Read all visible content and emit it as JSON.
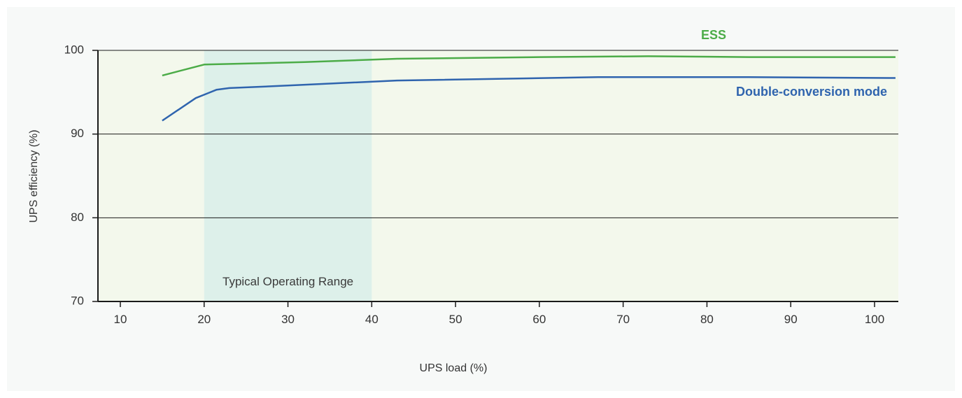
{
  "chart_data": {
    "type": "line",
    "xlabel": "UPS load (%)",
    "ylabel": "UPS efficiency (%)",
    "xlim": [
      7,
      102.5
    ],
    "ylim": [
      70,
      100
    ],
    "x_ticks": [
      10,
      20,
      30,
      40,
      50,
      60,
      70,
      80,
      90,
      100
    ],
    "y_ticks": [
      70,
      80,
      90,
      100
    ],
    "grid": "horizontal",
    "shaded_region": {
      "x_range": [
        20,
        40
      ],
      "label": "Typical Operating Range",
      "color": "#ddf0ea"
    },
    "plot_background": "#f3f8ec",
    "series": [
      {
        "name": "ESS",
        "color": "#4cac48",
        "x": [
          15,
          20,
          32,
          43,
          60,
          73,
          85,
          102.5
        ],
        "y": [
          97.0,
          98.3,
          98.6,
          99.0,
          99.2,
          99.3,
          99.2,
          99.2
        ]
      },
      {
        "name": "Double-conversion mode",
        "color": "#2f64ae",
        "x": [
          15,
          19,
          20.5,
          21.5,
          23,
          30,
          43,
          67,
          85,
          102.5
        ],
        "y": [
          91.6,
          94.3,
          94.9,
          95.3,
          95.5,
          95.8,
          96.4,
          96.8,
          96.8,
          96.7
        ]
      }
    ]
  }
}
